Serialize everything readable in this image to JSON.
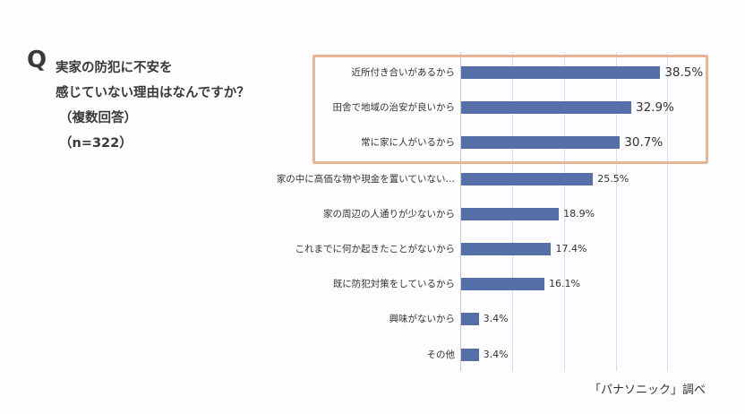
{
  "question": {
    "mark": "Q",
    "lines": [
      "実家の防犯に不安を",
      "感じていない理由はなんですか？",
      "（複数回答）",
      "（n=322）"
    ]
  },
  "source": "「パナソニック」調べ",
  "colors": {
    "bar": "#5570a8",
    "highlight_border": "#e8b596",
    "grid": "#dcdce4"
  },
  "chart_data": {
    "type": "bar",
    "orientation": "horizontal",
    "title": "実家の防犯に不安を感じていない理由はなんですか？（複数回答）（n=322）",
    "categories": [
      "近所付き合いがあるから",
      "田舎で地域の治安が良いから",
      "常に家に人がいるから",
      "家の中に高価な物や現金を置いていない…",
      "家の周辺の人通りが少ないから",
      "これまでに何か起きたことがないから",
      "既に防犯対策をしているから",
      "興味がないから",
      "その他"
    ],
    "values": [
      38.5,
      32.9,
      30.7,
      25.5,
      18.9,
      17.4,
      16.1,
      3.4,
      3.4
    ],
    "value_labels": [
      "38.5%",
      "32.9%",
      "30.7%",
      "25.5%",
      "18.9%",
      "17.4%",
      "16.1%",
      "3.4%",
      "3.4%"
    ],
    "xlim": [
      0,
      40
    ],
    "grid": true,
    "gridlines": [
      0,
      10,
      20,
      30,
      40
    ],
    "highlighted": [
      0,
      1,
      2
    ],
    "xlabel": "",
    "ylabel": ""
  }
}
